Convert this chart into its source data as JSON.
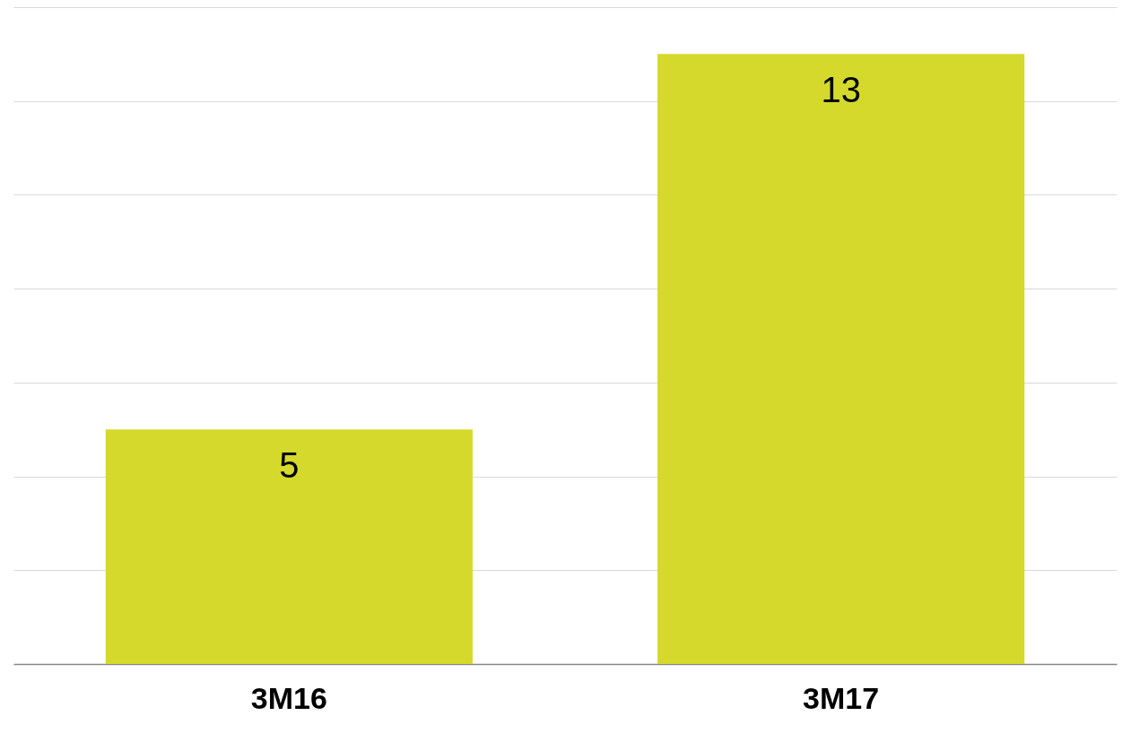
{
  "chart_data": {
    "type": "bar",
    "categories": [
      "3M16",
      "3M17"
    ],
    "values": [
      5,
      13
    ],
    "color": "#d4d92c",
    "ylim": [
      0,
      14
    ],
    "yticks": [
      {
        "value": 0,
        "label": null
      },
      {
        "value": 2,
        "label": null
      },
      {
        "value": 4,
        "label": null
      },
      {
        "value": 6,
        "label": null
      },
      {
        "value": 8,
        "label": null
      },
      {
        "value": 10,
        "label": null
      },
      {
        "value": 12,
        "label": null
      },
      {
        "value": 14,
        "label": null
      }
    ],
    "grid": "y",
    "data_labels": true
  }
}
